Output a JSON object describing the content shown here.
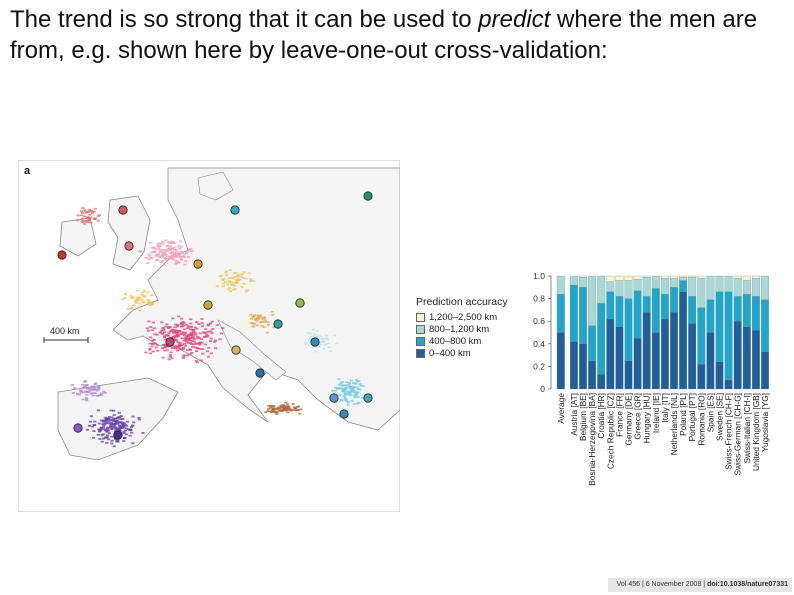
{
  "slide": {
    "heading_before": "The trend is so strong that it can be used to ",
    "heading_em": "predict",
    "heading_after": " where the men are from, e.g. shown here by leave-one-out cross-validation:",
    "citation_pre": "Vol 456 | 6 November 2008 | ",
    "citation_doi": "doi:10.1038/nature07331"
  },
  "map_panel": {
    "panel_label": "a",
    "scale_label": "400 km"
  },
  "chart_data": {
    "type": "bar",
    "stacked": true,
    "ylim": [
      0,
      1.0
    ],
    "yticks": [
      "0",
      "0.2",
      "0.4",
      "0.6",
      "0.8",
      "1.0"
    ],
    "legend_title": "Prediction accuracy",
    "legend_position": "left",
    "categories": [
      "Average",
      "Austria [AT]",
      "Belgium [BE]",
      "Bosnia-Herzegovina [BA]",
      "Croatia [HR]",
      "Czech Republic [CZ]",
      "France [FR]",
      "Germany [DE]",
      "Greece [GR]",
      "Hungary [HU]",
      "Ireland [IE]",
      "Italy [IT]",
      "Netherlands [NL]",
      "Poland [PL]",
      "Portugal [PT]",
      "Romania [RO]",
      "Spain [ES]",
      "Sweden [SE]",
      "Swiss-French [CH-F]",
      "Swiss-German [CH-G]",
      "Swiss-Italian [CH-I]",
      "United Kingdom [GB]",
      "Yugoslavia [YG]"
    ],
    "series": [
      {
        "name": "0–400 km",
        "color": "#1f5f9a",
        "values": [
          0.5,
          0.42,
          0.4,
          0.25,
          0.13,
          0.62,
          0.55,
          0.25,
          0.45,
          0.68,
          0.5,
          0.62,
          0.68,
          0.86,
          0.58,
          0.22,
          0.5,
          0.24,
          0.08,
          0.6,
          0.55,
          0.52,
          0.33
        ]
      },
      {
        "name": "400–800 km",
        "color": "#1fa6cc",
        "values": [
          0.34,
          0.5,
          0.5,
          0.31,
          0.63,
          0.24,
          0.27,
          0.55,
          0.42,
          0.14,
          0.39,
          0.22,
          0.22,
          0.1,
          0.24,
          0.5,
          0.29,
          0.62,
          0.78,
          0.22,
          0.29,
          0.3,
          0.46
        ]
      },
      {
        "name": "800–1,200 km",
        "color": "#a9d7d6",
        "values": [
          0.16,
          0.08,
          0.09,
          0.44,
          0.24,
          0.09,
          0.14,
          0.16,
          0.1,
          0.17,
          0.11,
          0.14,
          0.08,
          0.03,
          0.17,
          0.26,
          0.21,
          0.14,
          0.14,
          0.16,
          0.12,
          0.16,
          0.21
        ]
      },
      {
        "name": "1,200–2,500 km",
        "color": "#fbf3cf",
        "values": [
          0.0,
          0.0,
          0.01,
          0.0,
          0.0,
          0.05,
          0.04,
          0.04,
          0.03,
          0.01,
          0.0,
          0.02,
          0.02,
          0.01,
          0.01,
          0.02,
          0.0,
          0.0,
          0.0,
          0.02,
          0.04,
          0.02,
          0.0
        ]
      }
    ]
  }
}
